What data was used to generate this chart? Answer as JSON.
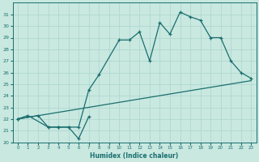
{
  "xlabel": "Humidex (Indice chaleur)",
  "xlim": [
    -0.5,
    23.5
  ],
  "ylim": [
    20,
    32
  ],
  "xticks": [
    0,
    1,
    2,
    3,
    4,
    5,
    6,
    7,
    8,
    9,
    10,
    11,
    12,
    13,
    14,
    15,
    16,
    17,
    18,
    19,
    20,
    21,
    22,
    23
  ],
  "yticks": [
    20,
    21,
    22,
    23,
    24,
    25,
    26,
    27,
    28,
    29,
    30,
    31
  ],
  "bg_color": "#c8e8e0",
  "grid_color": "#b0d8d0",
  "line_color": "#1a6e6e",
  "line1_x": [
    0,
    1,
    3,
    4,
    5,
    6,
    7
  ],
  "line1_y": [
    22.0,
    22.3,
    21.3,
    21.3,
    21.3,
    20.3,
    22.2
  ],
  "line2_x": [
    0,
    2,
    3,
    4,
    5,
    6,
    7,
    8,
    10,
    11,
    12,
    13,
    14,
    15,
    16,
    17,
    18,
    19,
    20,
    21,
    22,
    23
  ],
  "line2_y": [
    22.0,
    22.3,
    21.3,
    21.3,
    21.3,
    21.3,
    24.5,
    25.8,
    28.8,
    28.8,
    29.5,
    27.0,
    30.3,
    29.3,
    31.2,
    30.8,
    30.5,
    29.0,
    29.0,
    27.0,
    26.0,
    25.5
  ],
  "line3_x": [
    0,
    23
  ],
  "line3_y": [
    22.0,
    25.3
  ]
}
